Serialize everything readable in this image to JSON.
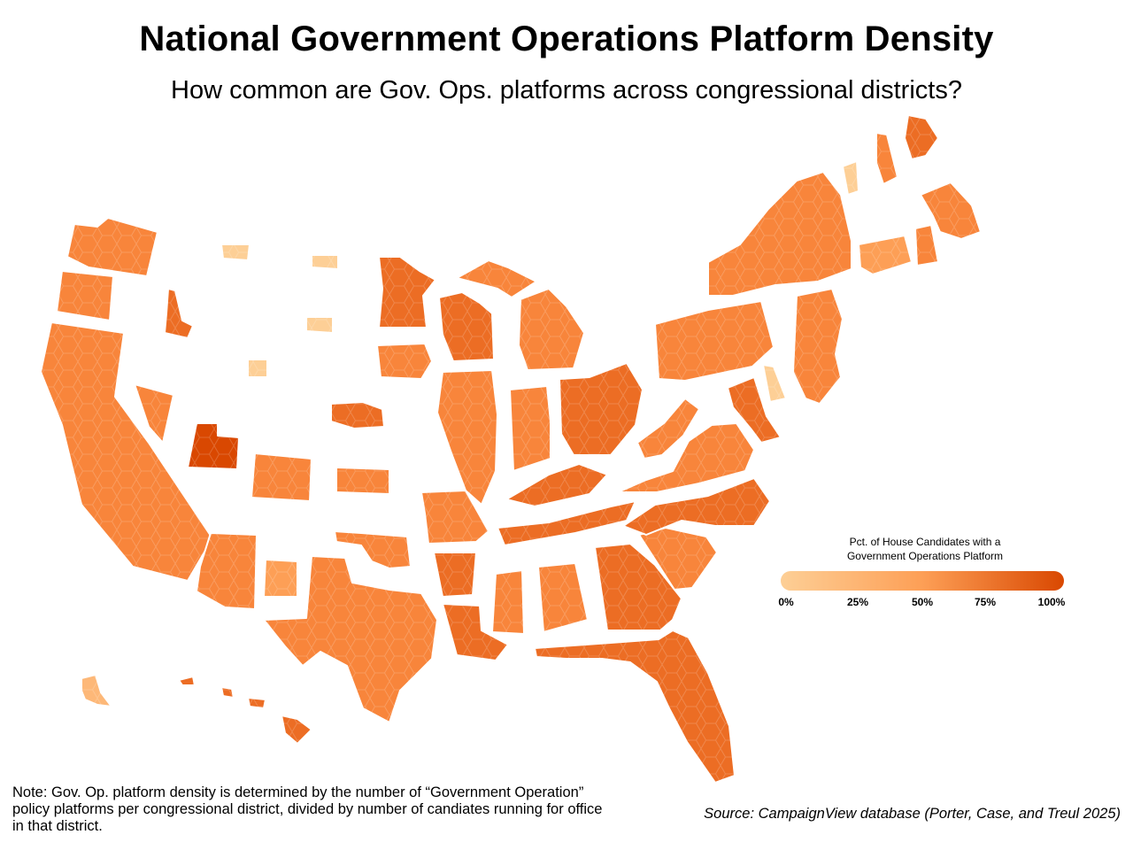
{
  "header": {
    "title": "National Government Operations Platform Density",
    "subtitle": "How common are Gov. Ops. platforms across congressional districts?"
  },
  "legend": {
    "title_line1": "Pct. of House Candidates with a",
    "title_line2": "Government Operations Platform",
    "ticks": [
      "0%",
      "25%",
      "50%",
      "75%",
      "100%"
    ],
    "color_low": "#fdcf96",
    "color_high": "#d94801"
  },
  "footer": {
    "note": "Note: Gov. Op. platform density is determined by the number of “Government Operation” policy platforms per congressional district, divided by number of candiates running for office in that district.",
    "source": "Source: CampaignView database (Porter, Case, and Treul 2025)"
  },
  "palette": [
    "#fdcf96",
    "#fdb878",
    "#fd9f56",
    "#f8853b",
    "#ec6d24",
    "#d94801"
  ],
  "map_data": [
    {
      "state": "WA",
      "level": 3
    },
    {
      "state": "OR",
      "level": 3
    },
    {
      "state": "CA",
      "level": 3
    },
    {
      "state": "ID",
      "level": 4
    },
    {
      "state": "NV",
      "level": 3
    },
    {
      "state": "UT",
      "level": 5
    },
    {
      "state": "AZ",
      "level": 3
    },
    {
      "state": "MT",
      "level": 0
    },
    {
      "state": "WY",
      "level": 0
    },
    {
      "state": "CO",
      "level": 3
    },
    {
      "state": "NM",
      "level": 2
    },
    {
      "state": "ND",
      "level": 0
    },
    {
      "state": "SD",
      "level": 0
    },
    {
      "state": "NE",
      "level": 4
    },
    {
      "state": "KS",
      "level": 3
    },
    {
      "state": "OK",
      "level": 3
    },
    {
      "state": "TX",
      "level": 3
    },
    {
      "state": "MN",
      "level": 4
    },
    {
      "state": "IA",
      "level": 3
    },
    {
      "state": "MO",
      "level": 3
    },
    {
      "state": "AR",
      "level": 4
    },
    {
      "state": "LA",
      "level": 4
    },
    {
      "state": "WI",
      "level": 4
    },
    {
      "state": "IL",
      "level": 3
    },
    {
      "state": "MI",
      "level": 3
    },
    {
      "state": "IN",
      "level": 3
    },
    {
      "state": "OH",
      "level": 4
    },
    {
      "state": "KY",
      "level": 4
    },
    {
      "state": "TN",
      "level": 4
    },
    {
      "state": "MS",
      "level": 3
    },
    {
      "state": "AL",
      "level": 3
    },
    {
      "state": "GA",
      "level": 4
    },
    {
      "state": "FL",
      "level": 4
    },
    {
      "state": "SC",
      "level": 3
    },
    {
      "state": "NC",
      "level": 4
    },
    {
      "state": "VA",
      "level": 3
    },
    {
      "state": "WV",
      "level": 3
    },
    {
      "state": "PA",
      "level": 3
    },
    {
      "state": "NY",
      "level": 3
    },
    {
      "state": "NJ",
      "level": 3
    },
    {
      "state": "DE",
      "level": 0
    },
    {
      "state": "MD",
      "level": 4
    },
    {
      "state": "CT",
      "level": 2
    },
    {
      "state": "RI",
      "level": 3
    },
    {
      "state": "MA",
      "level": 3
    },
    {
      "state": "VT",
      "level": 0
    },
    {
      "state": "NH",
      "level": 3
    },
    {
      "state": "ME",
      "level": 4
    },
    {
      "state": "AK",
      "level": 1
    },
    {
      "state": "HI",
      "level": 4
    }
  ]
}
